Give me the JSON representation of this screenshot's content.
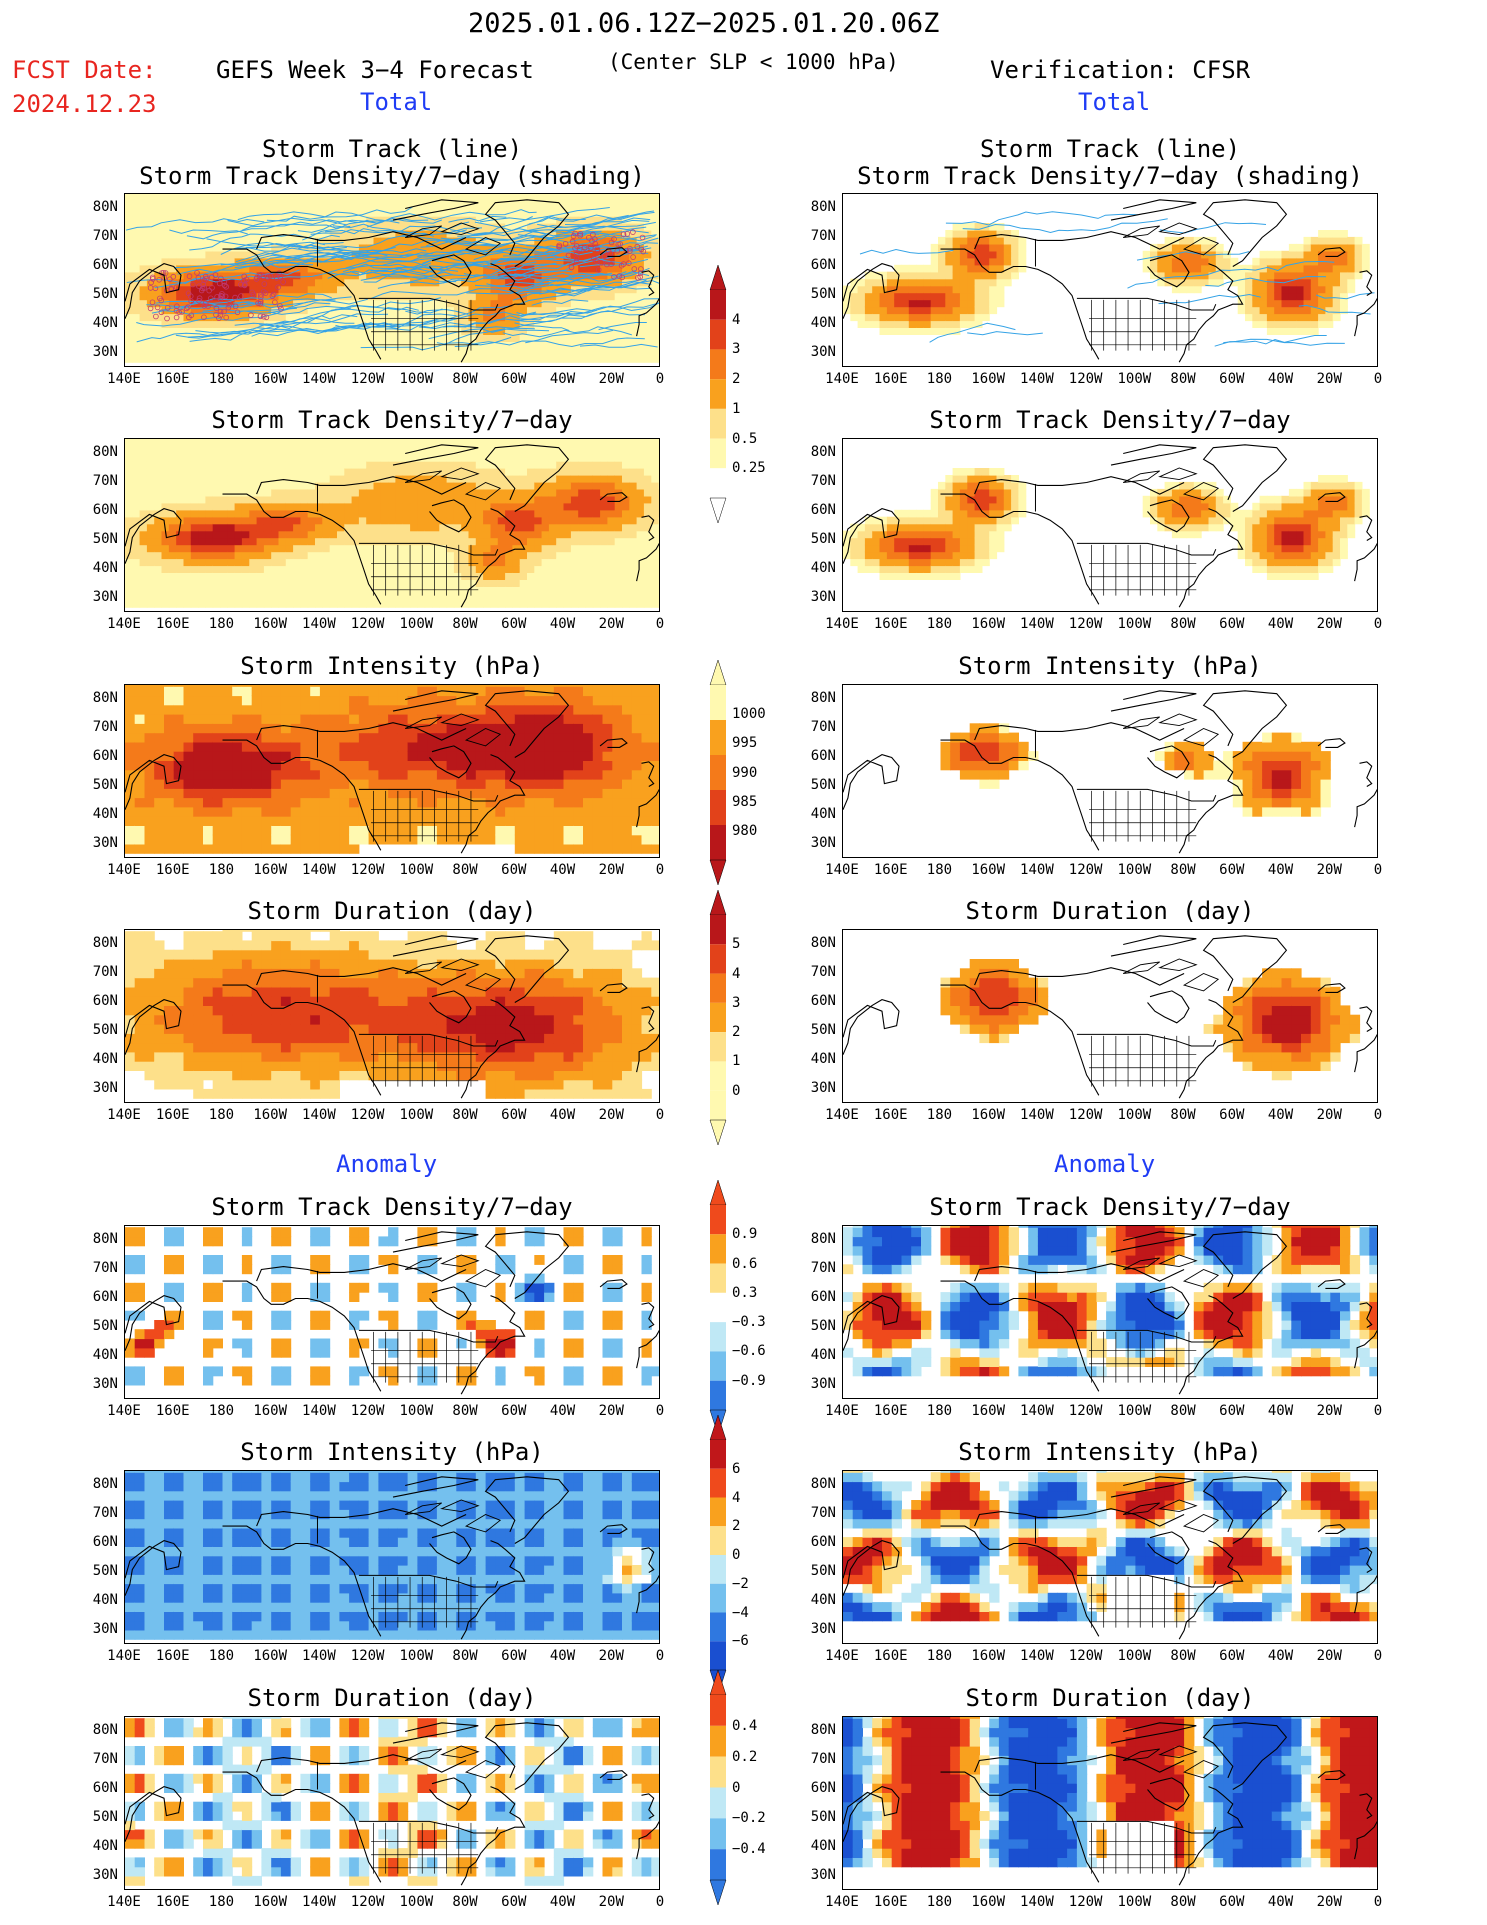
{
  "header": {
    "date_range": "2025.01.06.12Z−2025.01.20.06Z",
    "fcst_label": "FCST Date:",
    "fcst_date": "2024.12.23",
    "forecast_title": "GEFS Week 3−4 Forecast",
    "criterion": "(Center SLP < 1000 hPa)",
    "verification": "Verification: CFSR"
  },
  "sections": {
    "total": "Total",
    "anomaly": "Anomaly"
  },
  "panel_titles": {
    "track_line": "Storm Track (line)",
    "track_shading": "Storm Track Density/7−day (shading)",
    "density": "Storm Track Density/7−day",
    "intensity": "Storm Intensity (hPa)",
    "duration": "Storm Duration (day)"
  },
  "axes": {
    "lat_ticks": [
      "80N",
      "70N",
      "60N",
      "50N",
      "40N",
      "30N"
    ],
    "lon_ticks": [
      "140E",
      "160E",
      "180",
      "160W",
      "140W",
      "120W",
      "100W",
      "80W",
      "60W",
      "40W",
      "20W",
      "0"
    ]
  },
  "colorbars": {
    "density_total": [
      "4",
      "3",
      "2",
      "1",
      "0.5",
      "0.25"
    ],
    "intensity_total": [
      "1000",
      "995",
      "990",
      "985",
      "980"
    ],
    "duration_total": [
      "5",
      "4",
      "3",
      "2",
      "1",
      "0"
    ],
    "density_anom": [
      "0.9",
      "0.6",
      "0.3",
      "−0.3",
      "−0.6",
      "−0.9"
    ],
    "intensity_anom": [
      "6",
      "4",
      "2",
      "0",
      "−2",
      "−4",
      "−6"
    ],
    "duration_anom": [
      "0.4",
      "0.2",
      "0",
      "−0.2",
      "−0.4"
    ]
  },
  "colors": {
    "total_scale": [
      "#fff9b0",
      "#fde08a",
      "#f9a11e",
      "#f47a1a",
      "#e2421a",
      "#b8171a"
    ],
    "anom_pos": [
      "#fde08a",
      "#f9a11e",
      "#ef4a1c",
      "#c0171a"
    ],
    "anom_neg": [
      "#bfe8f5",
      "#74c0ee",
      "#2f78e0",
      "#1a4fd0"
    ],
    "track_line": "#35a3e6",
    "storm_center": "#c03a70"
  }
}
